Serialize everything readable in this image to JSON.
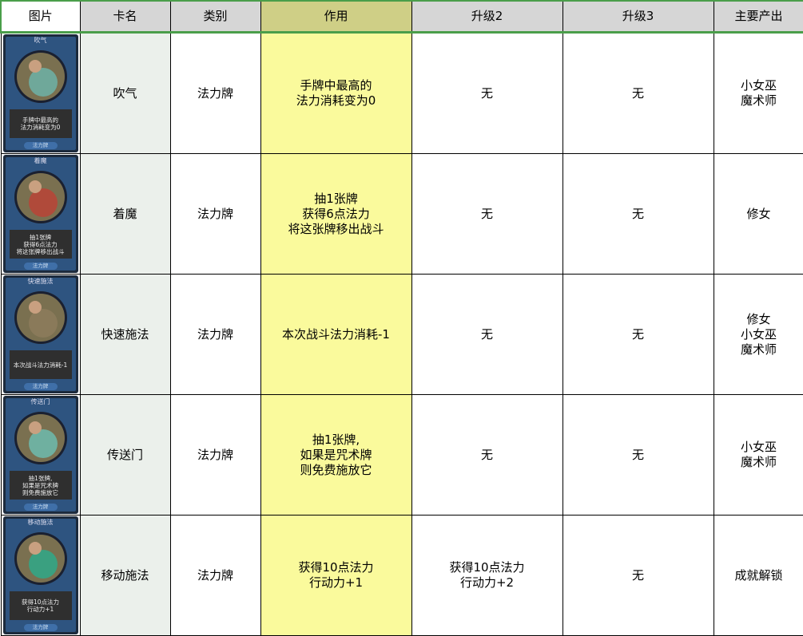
{
  "headers": [
    "图片",
    "卡名",
    "类别",
    "作用",
    "升级2",
    "升级3",
    "主要产出"
  ],
  "rows": [
    {
      "card_title": "吹气",
      "card_text": "手牌中最高的\n法力消耗变为0",
      "card_type": "法力牌",
      "art_color": "#6fa89a",
      "name": "吹气",
      "category": "法力牌",
      "effect": "手牌中最高的\n法力消耗变为0",
      "upgrade2": "无",
      "upgrade3": "无",
      "source": "小女巫\n魔术师"
    },
    {
      "card_title": "着魔",
      "card_text": "抽1张牌\n获得6点法力\n将这张牌移出战斗",
      "card_type": "法力牌",
      "art_color": "#b04a3a",
      "name": "着魔",
      "category": "法力牌",
      "effect": "抽1张牌\n获得6点法力\n将这张牌移出战斗",
      "upgrade2": "无",
      "upgrade3": "无",
      "source": "修女"
    },
    {
      "card_title": "快速施法",
      "card_text": "本次战斗法力消耗-1",
      "card_type": "法力牌",
      "art_color": "#8a7a5a",
      "name": "快速施法",
      "category": "法力牌",
      "effect": "本次战斗法力消耗-1",
      "upgrade2": "无",
      "upgrade3": "无",
      "source": "修女\n小女巫\n魔术师"
    },
    {
      "card_title": "传送门",
      "card_text": "抽1张牌,\n如果是咒术牌\n则免费施放它",
      "card_type": "法力牌",
      "art_color": "#6fb0a0",
      "name": "传送门",
      "category": "法力牌",
      "effect": "抽1张牌,\n如果是咒术牌\n则免费施放它",
      "upgrade2": "无",
      "upgrade3": "无",
      "source": "小女巫\n魔术师"
    },
    {
      "card_title": "移动施法",
      "card_text": "获得10点法力\n行动力+1",
      "card_type": "法力牌",
      "art_color": "#3aa080",
      "name": "移动施法",
      "category": "法力牌",
      "effect": "获得10点法力\n行动力+1",
      "upgrade2": "获得10点法力\n行动力+2",
      "upgrade3": "无",
      "source": "成就解锁"
    }
  ]
}
